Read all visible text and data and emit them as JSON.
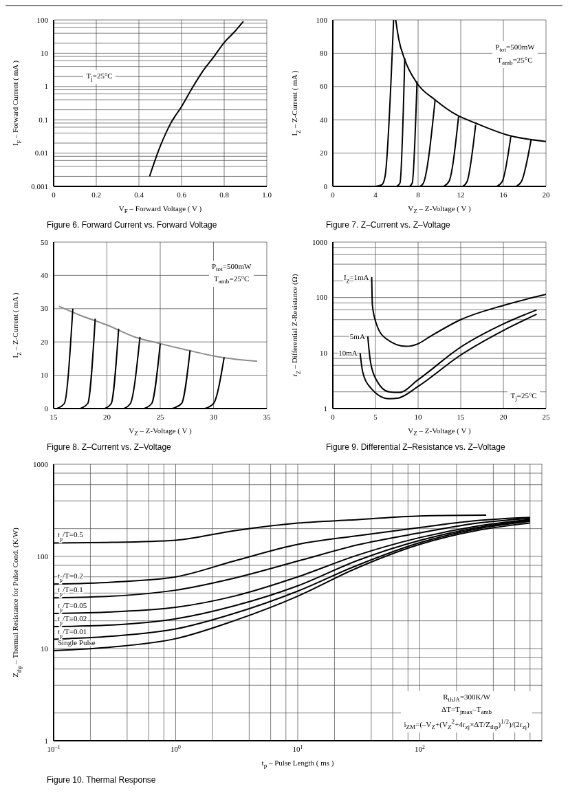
{
  "chart_data": [
    {
      "type": "line",
      "title": "Figure 6.  Forward Current vs. Forward Voltage",
      "xlabel": "V$_{F}$ – Forward Voltage ( V )",
      "ylabel": "I$_{F}$ – Forward Current ( mA )",
      "annotations": [
        "T$_{j}$=25°C"
      ],
      "log": "y",
      "grid": true,
      "xlim": [
        0,
        1
      ],
      "xticks": [
        0,
        0.2,
        0.4,
        0.6,
        0.8,
        {
          "value": 1,
          "label": "1.0"
        }
      ],
      "ylim": [
        0.001,
        100
      ],
      "yticks": [
        0.001,
        {
          "value": 0.002,
          "label": null
        },
        {
          "value": 0.004,
          "label": null
        },
        {
          "value": 0.006,
          "label": null
        },
        {
          "value": 0.008,
          "label": null
        },
        0.01,
        {
          "value": 0.02,
          "label": null
        },
        {
          "value": 0.04,
          "label": null
        },
        {
          "value": 0.06,
          "label": null
        },
        {
          "value": 0.08,
          "label": null
        },
        0.1,
        {
          "value": 0.2,
          "label": null
        },
        {
          "value": 0.4,
          "label": null
        },
        {
          "value": 0.6,
          "label": null
        },
        {
          "value": 0.8,
          "label": null
        },
        1,
        {
          "value": 2,
          "label": null
        },
        {
          "value": 4,
          "label": null
        },
        {
          "value": 6,
          "label": null
        },
        {
          "value": 8,
          "label": null
        },
        10,
        {
          "value": 20,
          "label": null
        },
        {
          "value": 40,
          "label": null
        },
        {
          "value": 60,
          "label": null
        },
        {
          "value": 80,
          "label": null
        },
        100
      ],
      "series": [
        {
          "color": "#000000",
          "x": [
            0.45,
            0.5,
            0.55,
            0.6,
            0.65,
            0.7,
            0.75,
            0.8,
            0.85,
            0.89
          ],
          "values": [
            0.002,
            0.016,
            0.08,
            0.25,
            0.9,
            2.9,
            7.6,
            21,
            45,
            90
          ]
        }
      ]
    },
    {
      "type": "line",
      "title": "Figure 7.  Z–Current vs. Z–Voltage",
      "xlabel": "V$_{Z}$ – Z-Voltage ( V )",
      "ylabel": "I$_{Z}$ – Z-Current ( mA )",
      "annotations": [
        "P$_{tot}$=500mW",
        "T$_{amb}$=25°C"
      ],
      "grid": true,
      "xlim": [
        0,
        20
      ],
      "xticks": [
        0,
        4,
        8,
        12,
        16,
        20
      ],
      "ylim": [
        0,
        100
      ],
      "yticks": [
        0,
        20,
        40,
        60,
        80,
        100
      ],
      "series": [
        {
          "color": "#000000",
          "x": [
            5.9,
            6.2,
            6.7,
            7.9,
            9.6,
            11.6,
            13.4,
            16.3,
            20
          ],
          "values": [
            100,
            88,
            77,
            62,
            52,
            43,
            38,
            31,
            27
          ]
        },
        {
          "color": "#000000",
          "x": [
            4.0,
            4.6,
            4.9,
            5.7
          ],
          "values": [
            0,
            1,
            6,
            100
          ]
        },
        {
          "color": "#000000",
          "x": [
            6.0,
            6.3,
            6.75
          ],
          "values": [
            0,
            2,
            77
          ]
        },
        {
          "color": "#000000",
          "x": [
            7.2,
            7.45,
            7.9
          ],
          "values": [
            0,
            2,
            63
          ]
        },
        {
          "color": "#000000",
          "x": [
            8.2,
            8.5,
            9.6
          ],
          "values": [
            0,
            2,
            52
          ]
        },
        {
          "color": "#000000",
          "x": [
            10.4,
            10.9,
            11.8
          ],
          "values": [
            0,
            3,
            42
          ]
        },
        {
          "color": "#000000",
          "x": [
            12.2,
            12.6,
            13.4
          ],
          "values": [
            0,
            3,
            37
          ]
        },
        {
          "color": "#000000",
          "x": [
            15.4,
            15.9,
            16.7
          ],
          "values": [
            0,
            3,
            30
          ]
        },
        {
          "color": "#000000",
          "x": [
            17.2,
            17.7,
            18.6
          ],
          "values": [
            0,
            3,
            28
          ]
        }
      ]
    },
    {
      "type": "line",
      "title": "Figure 8.  Z–Current vs. Z–Voltage",
      "xlabel": "V$_{Z}$ – Z-Voltage ( V )",
      "ylabel": "I$_{Z}$ – Z-Current ( mA )",
      "annotations": [
        "P$_{tot}$=500mW",
        "T$_{amb}$=25°C"
      ],
      "grid": true,
      "xlim": [
        15,
        35
      ],
      "xticks": [
        15,
        20,
        25,
        30,
        35
      ],
      "ylim": [
        0,
        50
      ],
      "yticks": [
        0,
        10,
        20,
        30,
        40,
        50
      ],
      "series": [
        {
          "color": "#8c8c8c",
          "x": [
            15.5,
            17.5,
            20,
            22.6,
            25,
            27.6,
            30.5,
            34.1
          ],
          "values": [
            30.7,
            28,
            25.1,
            21.5,
            19.5,
            17.5,
            15.5,
            14.2
          ]
        },
        {
          "color": "#000000",
          "x": [
            15.3,
            16.0,
            16.8
          ],
          "values": [
            0,
            1.5,
            30
          ]
        },
        {
          "color": "#000000",
          "x": [
            17.5,
            18.2,
            18.9
          ],
          "values": [
            0,
            1.5,
            27
          ]
        },
        {
          "color": "#000000",
          "x": [
            19.8,
            20.4,
            21.1
          ],
          "values": [
            0,
            1.5,
            24
          ]
        },
        {
          "color": "#000000",
          "x": [
            21.6,
            22.2,
            23.1
          ],
          "values": [
            0,
            1.5,
            21.5
          ]
        },
        {
          "color": "#000000",
          "x": [
            23.5,
            24.2,
            25.0
          ],
          "values": [
            0,
            1.5,
            19.5
          ]
        },
        {
          "color": "#000000",
          "x": [
            26.1,
            27.0,
            27.8
          ],
          "values": [
            0,
            1.5,
            17.5
          ]
        },
        {
          "color": "#000000",
          "x": [
            29.2,
            30.0,
            31.0
          ],
          "values": [
            0,
            1.5,
            15.4
          ]
        }
      ]
    },
    {
      "type": "line",
      "title": "Figure 9.  Differential Z–Resistance vs. Z–Voltage",
      "xlabel": "V$_{Z}$ – Z-Voltage ( V )",
      "ylabel": "r$_{Z}$ – Differential Z-Resistance (Ω)",
      "annotations": [
        "T$_{j}$=25°C"
      ],
      "log": "y",
      "grid": true,
      "xlim": [
        0,
        25
      ],
      "xticks": [
        0,
        5,
        10,
        15,
        20,
        25
      ],
      "ylim": [
        1,
        1000
      ],
      "yticks": [
        1,
        {
          "value": 2,
          "label": null
        },
        {
          "value": 4,
          "label": null
        },
        {
          "value": 6,
          "label": null
        },
        {
          "value": 8,
          "label": null
        },
        10,
        {
          "value": 20,
          "label": null
        },
        {
          "value": 40,
          "label": null
        },
        {
          "value": 60,
          "label": null
        },
        {
          "value": 80,
          "label": null
        },
        100,
        {
          "value": 200,
          "label": null
        },
        {
          "value": 400,
          "label": null
        },
        {
          "value": 600,
          "label": null
        },
        {
          "value": 800,
          "label": null
        },
        1000
      ],
      "series": [
        {
          "name": "I$_{Z}$=1mA",
          "color": "#000000",
          "x": [
            4.56,
            4.64,
            5.1,
            6.2,
            8.6,
            10.0,
            11.3,
            15.0,
            20.1,
            25
          ],
          "values": [
            234,
            73,
            34,
            18.4,
            13.2,
            14.7,
            19.4,
            40,
            73,
            114
          ]
        },
        {
          "name": "5mA",
          "color": "#000000",
          "x": [
            4.1,
            4.4,
            5.1,
            6.6,
            7.8,
            10.0,
            14.9,
            20.1,
            23.9
          ],
          "values": [
            20,
            7.2,
            3.3,
            2.0,
            1.95,
            3.3,
            12.5,
            34,
            60
          ]
        },
        {
          "name": "10mA",
          "color": "#000000",
          "x": [
            3.2,
            3.5,
            4.4,
            6.6,
            7.7,
            10.0,
            14.9,
            20.1,
            23.9
          ],
          "values": [
            10,
            4.6,
            2.4,
            1.5,
            1.55,
            2.5,
            9,
            26,
            50
          ]
        }
      ]
    },
    {
      "type": "line",
      "title": "Figure 10.  Thermal Response",
      "xlabel": "t$_{p}$ – Pulse Length ( ms )",
      "ylabel": "Z$_{thp}$ – Thermal Resistance for Pulse Cond. (K/W)",
      "annotations": [
        "R$_{thJA}$=300K/W",
        "ΔT=T$_{jmax}$–T$_{amb}$",
        "i$_{ZM}$=(–V$_{Z}$+(V$_{Z}$$^{2}$+4r$_{zj}$×ΔT/Z$_{thp}$)$^{1/2}$)/(2r$_{zj}$)"
      ],
      "log": "xy",
      "grid": true,
      "xlim": [
        0.1,
        1000
      ],
      "xticks": [
        {
          "value": 0.1,
          "label": "10$^{−1}$"
        },
        {
          "value": 0.2,
          "label": null
        },
        {
          "value": 0.4,
          "label": null
        },
        {
          "value": 0.6,
          "label": null
        },
        {
          "value": 0.8,
          "label": null
        },
        {
          "value": 1,
          "label": "10$^{0}$"
        },
        {
          "value": 2,
          "label": null
        },
        {
          "value": 4,
          "label": null
        },
        {
          "value": 6,
          "label": null
        },
        {
          "value": 8,
          "label": null
        },
        {
          "value": 10,
          "label": "10$^{1}$"
        },
        {
          "value": 20,
          "label": null
        },
        {
          "value": 40,
          "label": null
        },
        {
          "value": 60,
          "label": null
        },
        {
          "value": 80,
          "label": null
        },
        {
          "value": 100,
          "label": "10$^{2}$"
        },
        {
          "value": 200,
          "label": null
        },
        {
          "value": 400,
          "label": null
        },
        {
          "value": 600,
          "label": null
        },
        {
          "value": 800,
          "label": null
        },
        {
          "value": 1000,
          "label": null
        }
      ],
      "ylim": [
        1,
        1000
      ],
      "yticks": [
        1,
        {
          "value": 2,
          "label": null
        },
        {
          "value": 4,
          "label": null
        },
        {
          "value": 6,
          "label": null
        },
        {
          "value": 8,
          "label": null
        },
        10,
        {
          "value": 20,
          "label": null
        },
        {
          "value": 40,
          "label": null
        },
        {
          "value": 60,
          "label": null
        },
        {
          "value": 80,
          "label": null
        },
        100,
        {
          "value": 200,
          "label": null
        },
        {
          "value": 400,
          "label": null
        },
        {
          "value": 600,
          "label": null
        },
        {
          "value": 800,
          "label": null
        },
        1000
      ],
      "series": [
        {
          "name": "t$_{p}$/T=0.5",
          "color": "#000000",
          "x": [
            0.1,
            0.3,
            1,
            3,
            10,
            30,
            100,
            350
          ],
          "values": [
            140,
            142,
            150,
            190,
            230,
            250,
            275,
            280
          ]
        },
        {
          "name": "t$_{p}$/T=0.2",
          "color": "#000000",
          "x": [
            0.1,
            0.3,
            1,
            3,
            10,
            30,
            100,
            300,
            800
          ],
          "values": [
            50,
            52.6,
            60,
            89,
            135,
            167,
            206,
            245,
            265
          ]
        },
        {
          "name": "t$_{p}$/T=0.1",
          "color": "#000000",
          "x": [
            0.1,
            0.3,
            1,
            3,
            10,
            30,
            100,
            300,
            800
          ],
          "values": [
            35.5,
            37,
            43,
            58,
            89,
            132,
            180,
            230,
            258
          ]
        },
        {
          "name": "t$_{p}$/T=0.05",
          "color": "#000000",
          "x": [
            0.1,
            0.3,
            1,
            3,
            10,
            30,
            100,
            300,
            800
          ],
          "values": [
            24,
            25,
            28,
            37,
            60,
            102,
            160,
            214,
            252
          ]
        },
        {
          "name": "t$_{p}$/T=0.02",
          "color": "#000000",
          "x": [
            0.1,
            0.3,
            1,
            3,
            10,
            30,
            100,
            300,
            800
          ],
          "values": [
            17.3,
            18,
            21,
            29,
            48,
            89,
            149,
            206,
            246
          ]
        },
        {
          "name": "t$_{p}$/T=0.01",
          "color": "#000000",
          "x": [
            0.1,
            0.3,
            1,
            3,
            10,
            30,
            100,
            300,
            800
          ],
          "values": [
            12.6,
            13.6,
            16.3,
            24,
            42,
            79,
            141,
            200,
            240
          ]
        },
        {
          "name": "Single Pulse",
          "color": "#000000",
          "x": [
            0.1,
            0.3,
            1,
            3,
            10,
            30,
            100,
            300,
            800
          ],
          "values": [
            9.5,
            10.4,
            12.8,
            20,
            37,
            74,
            135,
            192,
            230
          ]
        }
      ]
    }
  ]
}
